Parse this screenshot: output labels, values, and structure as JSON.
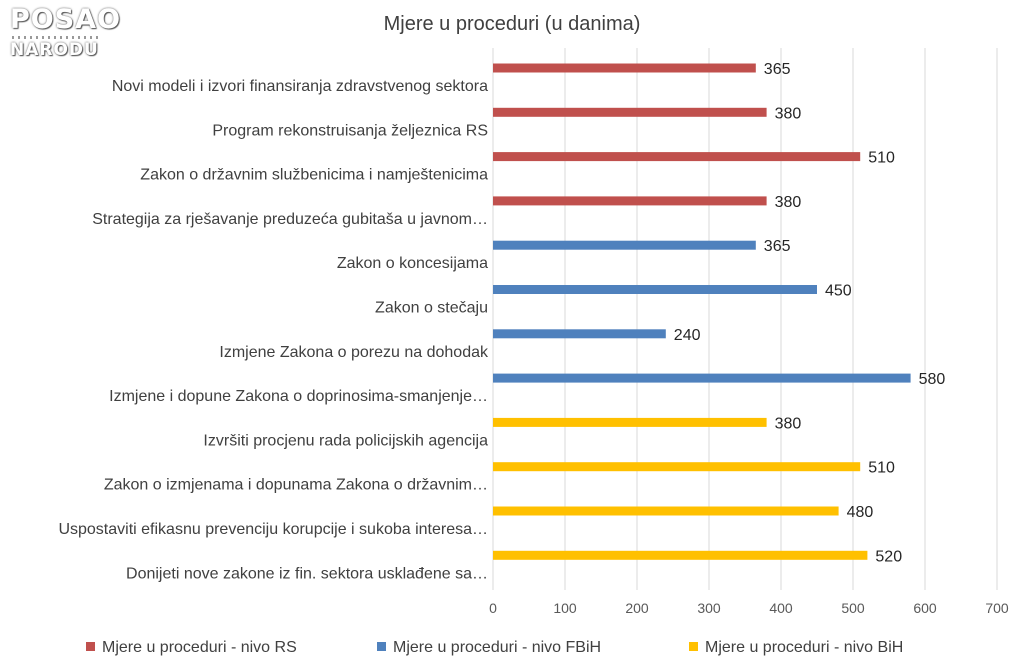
{
  "logo": {
    "line1": "POSAO",
    "line2": "NARODU"
  },
  "chart_data": {
    "type": "bar",
    "orientation": "horizontal",
    "title": "Mjere u proceduri (u danima)",
    "xlabel": "",
    "ylabel": "",
    "xlim": [
      0,
      700
    ],
    "xticks": [
      0,
      100,
      200,
      300,
      400,
      500,
      600,
      700
    ],
    "grid": true,
    "legend_position": "bottom",
    "categories": [
      "Novi modeli i izvori finansiranja zdravstvenog sektora",
      "Program rekonstruisanja željeznica RS",
      "Zakon o državnim službenicima i namještenicima",
      "Strategija za rješavanje preduzeća gubitaša u javnom…",
      "Zakon o koncesijama",
      "Zakon o stečaju",
      "Izmjene Zakona o porezu na dohodak",
      "Izmjene i dopune Zakona o doprinosima-smanjenje…",
      "Izvršiti procjenu rada policijskih agencija",
      "Zakon o izmjenama i dopunama Zakona o državnim…",
      "Uspostaviti efikasnu prevenciju korupcije i sukoba interesa…",
      "Donijeti nove zakone iz fin. sektora usklađene sa…"
    ],
    "values": [
      365,
      380,
      510,
      380,
      365,
      450,
      240,
      580,
      380,
      510,
      480,
      520
    ],
    "series_index": [
      0,
      0,
      0,
      0,
      1,
      1,
      1,
      1,
      2,
      2,
      2,
      2
    ],
    "series": [
      {
        "name": "Mjere u proceduri - nivo RS",
        "color": "#c0504d"
      },
      {
        "name": "Mjere u proceduri - nivo FBiH",
        "color": "#4f81bd"
      },
      {
        "name": "Mjere u proceduri -  nivo BiH",
        "color": "#ffc000"
      }
    ]
  }
}
